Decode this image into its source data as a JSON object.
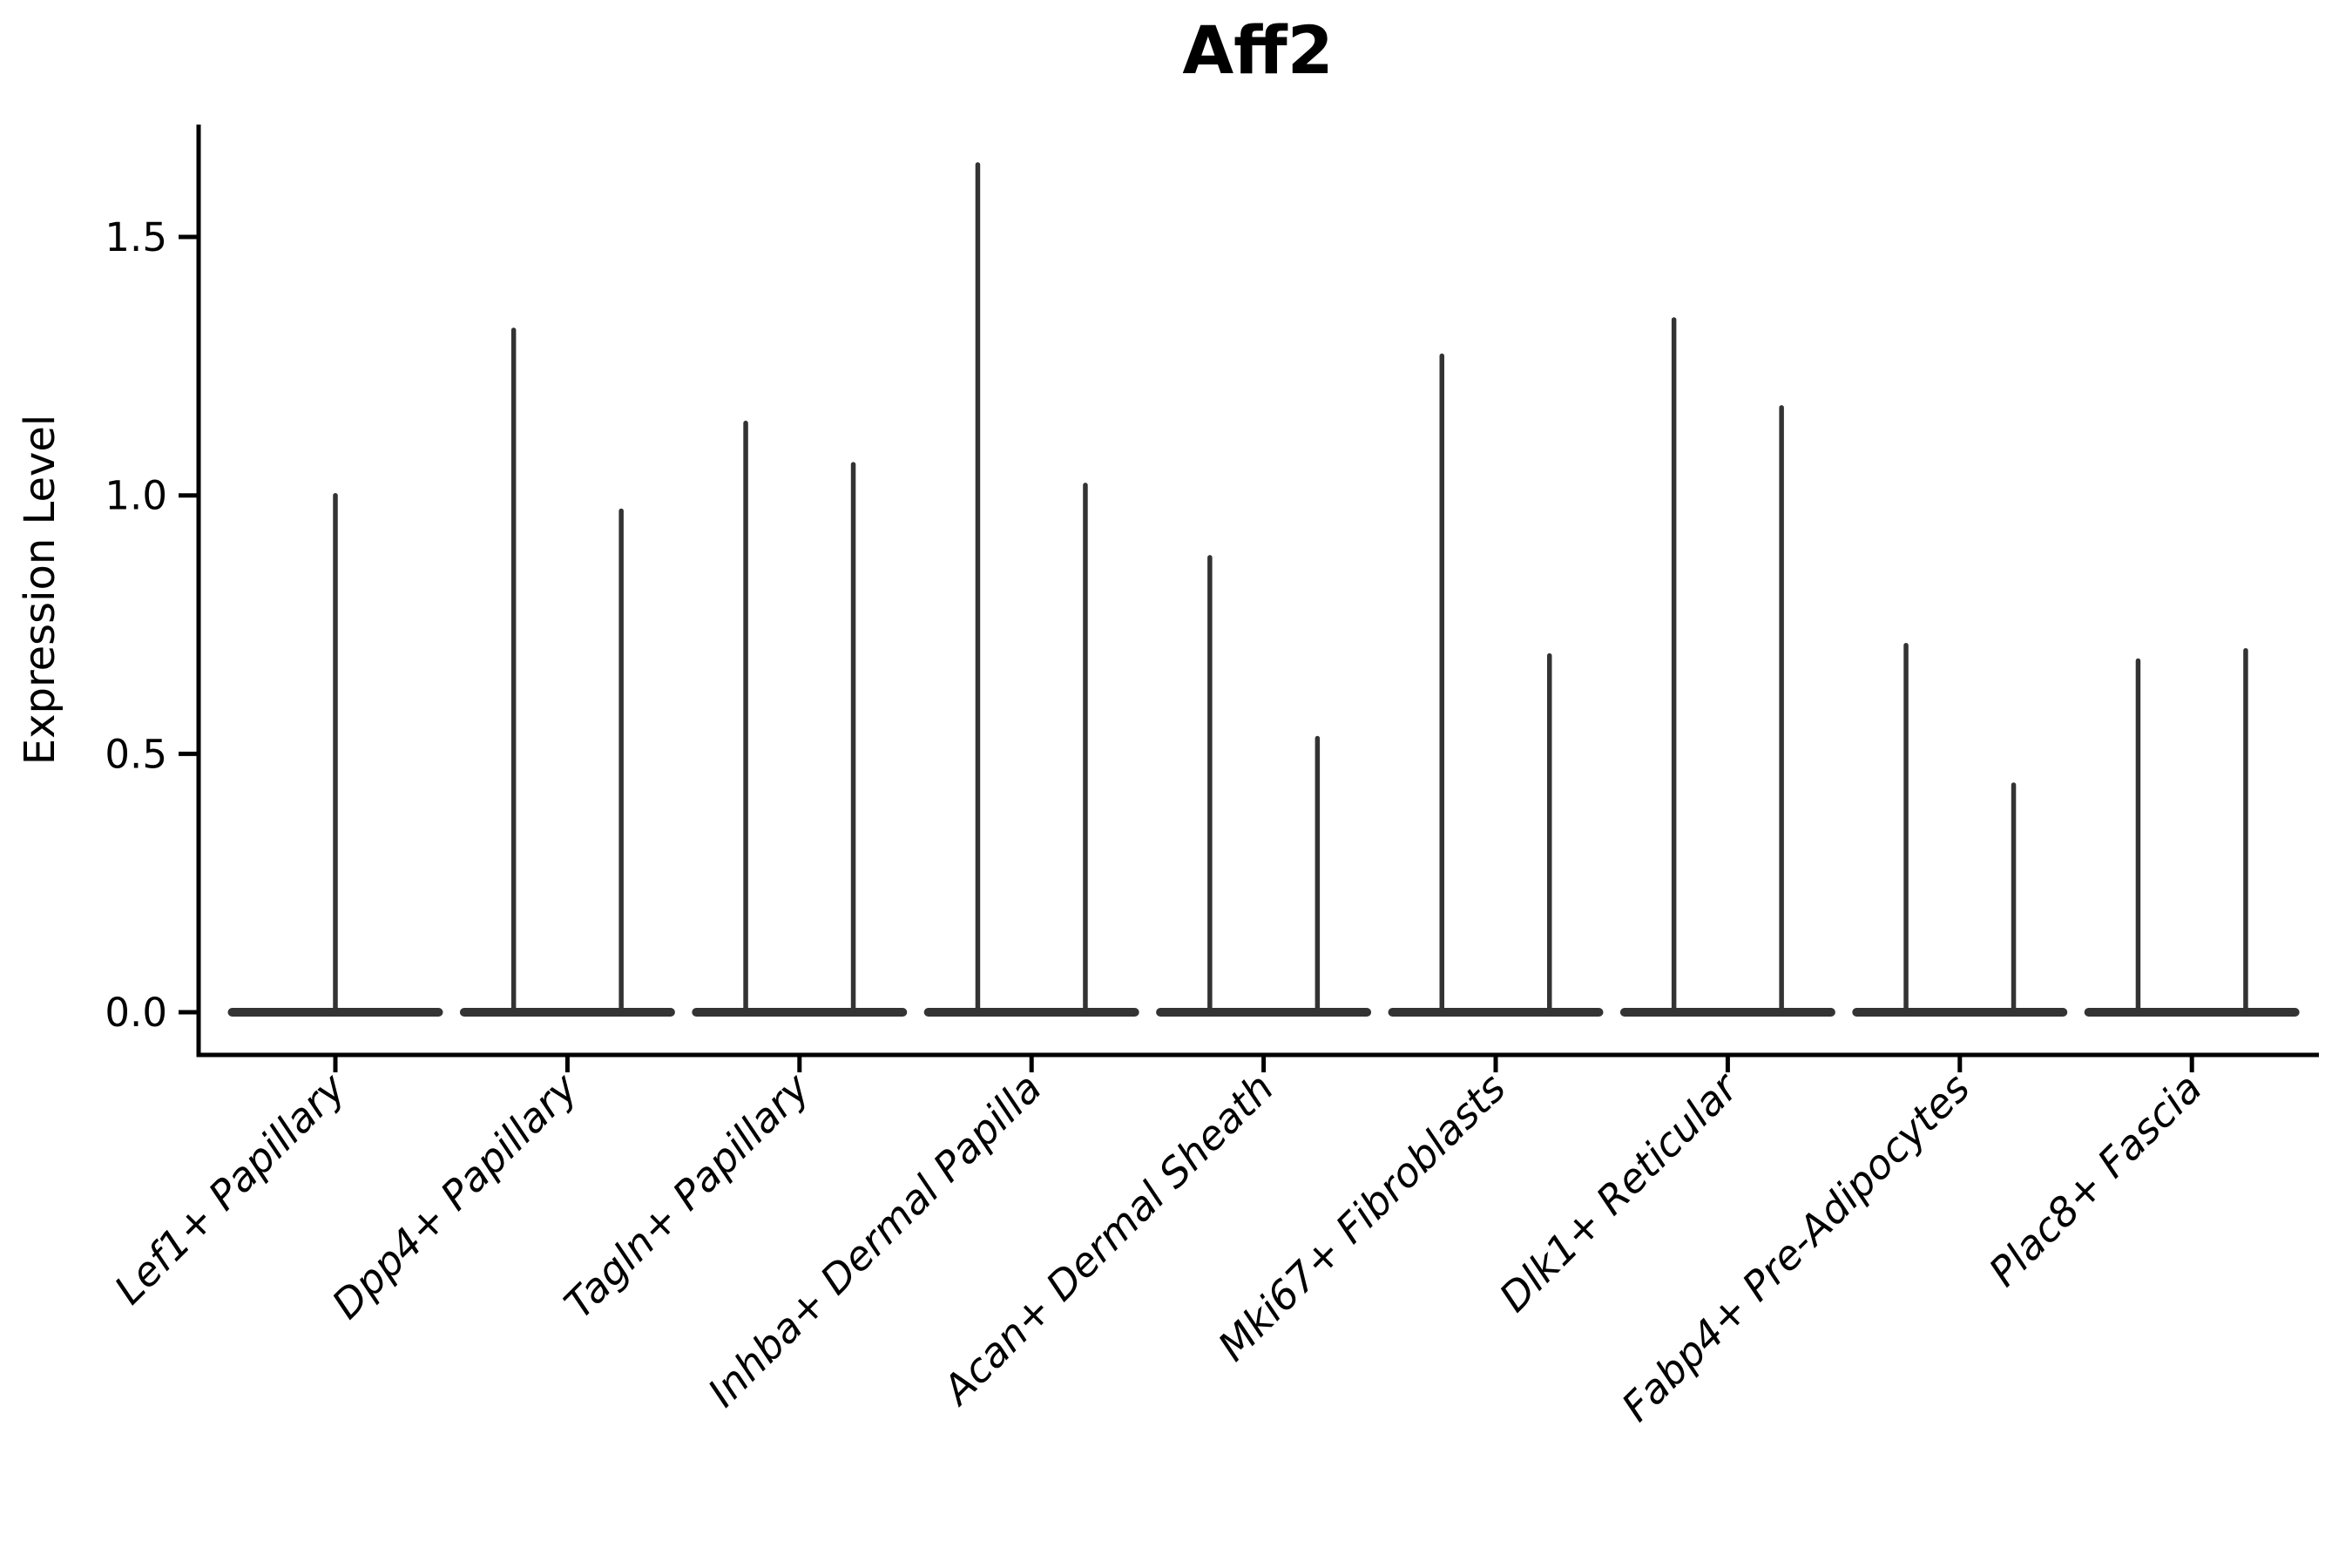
{
  "title": "Aff2",
  "y_axis": {
    "label": "Expression Level",
    "tick_labels": [
      "0.0",
      "0.5",
      "1.0",
      "1.5"
    ]
  },
  "chart_data": {
    "type": "violin",
    "title": "Aff2",
    "xlabel": "",
    "ylabel": "Expression Level",
    "categories": [
      "Lef1+ Papillary",
      "Dpp4+ Papillary",
      "Tagln+ Papillary",
      "Inhba+ Dermal Papilla",
      "Acan+ Dermal Sheath",
      "Mki67+ Fibroblasts",
      "Dlk1+ Reticular",
      "Fabp4+ Pre-Adipocytes",
      "Plac8+ Fascia"
    ],
    "violin_spike_max_values": [
      [
        1.0
      ],
      [
        1.32,
        0.97
      ],
      [
        1.14,
        1.06
      ],
      [
        1.64,
        1.02
      ],
      [
        0.88,
        0.53
      ],
      [
        1.27,
        0.69
      ],
      [
        1.34,
        1.17
      ],
      [
        0.71,
        0.44
      ],
      [
        0.68,
        0.7
      ]
    ],
    "baseline_value": 0.0,
    "yticks": [
      0.0,
      0.5,
      1.0,
      1.5
    ],
    "ylim": [
      -0.082,
      1.718
    ],
    "grid": false,
    "legend": "none"
  },
  "colors": {
    "violin": "#333333",
    "axis": "#000000",
    "text": "#000000"
  }
}
